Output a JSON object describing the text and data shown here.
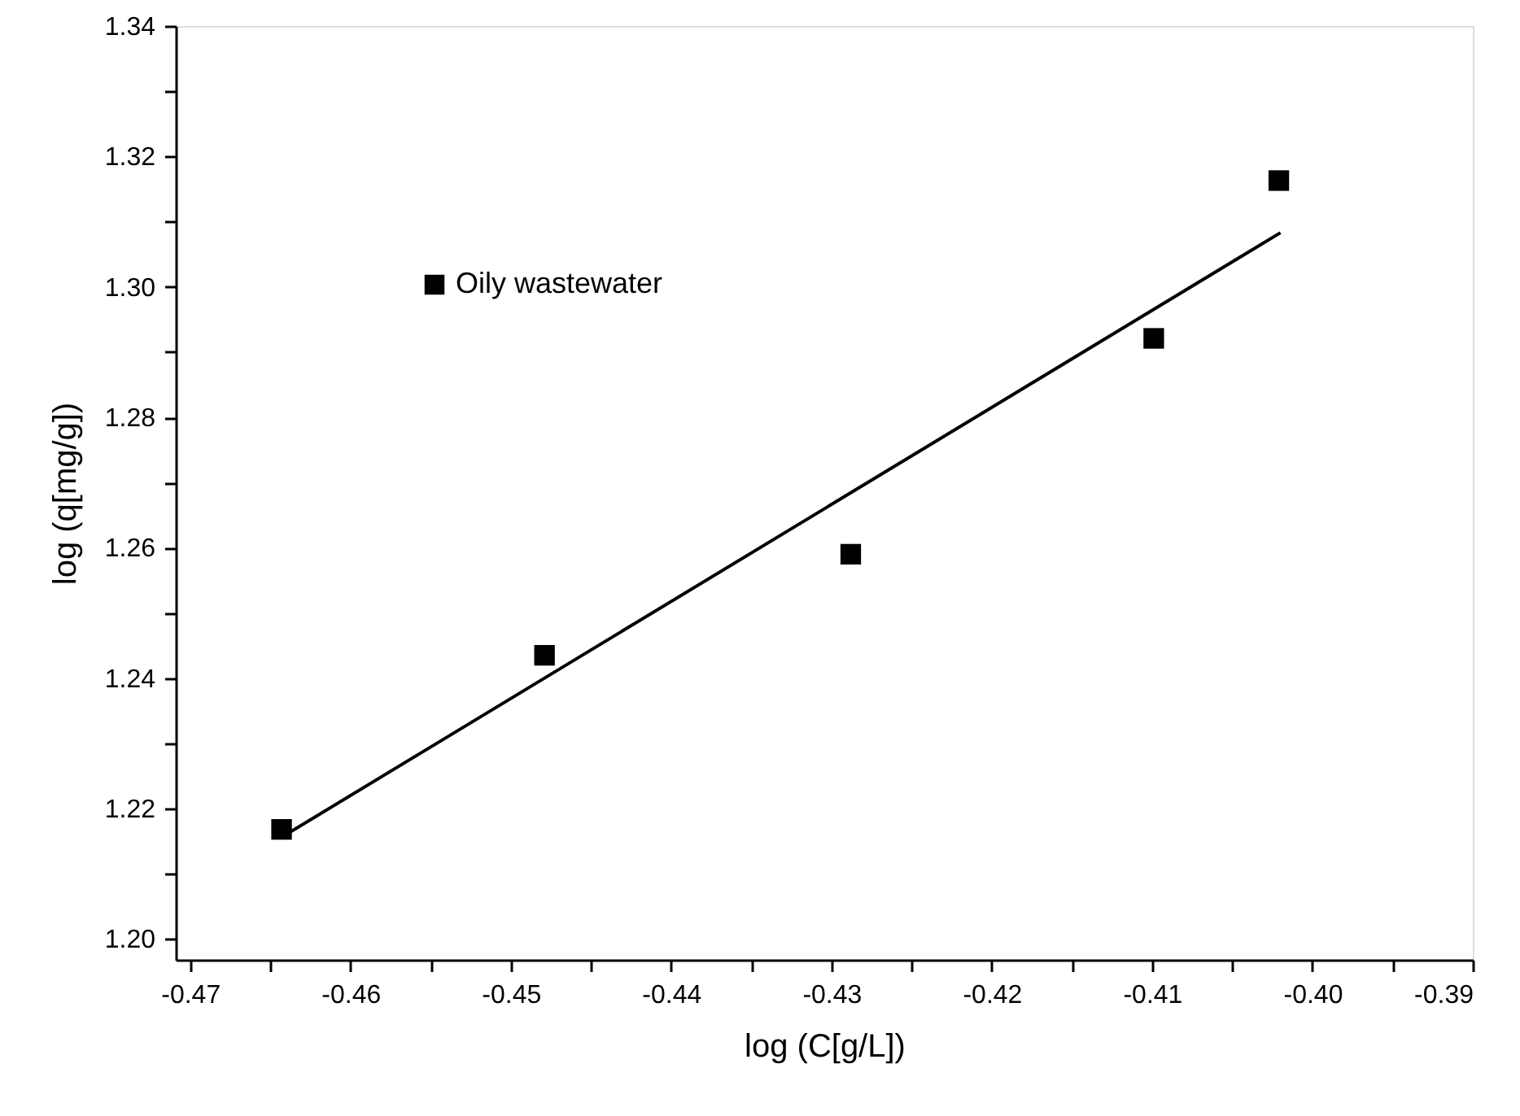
{
  "chart_data": {
    "type": "scatter",
    "xlabel": "log (C[g/L])",
    "ylabel": "log (q[mg/g])",
    "xlim": [
      -0.4709,
      -0.39
    ],
    "ylim": [
      1.1968,
      1.34
    ],
    "xticks": [
      {
        "value": -0.47,
        "label": "-0.47"
      },
      {
        "value": -0.465,
        "label": null
      },
      {
        "value": -0.46,
        "label": "-0.46"
      },
      {
        "value": -0.455,
        "label": null
      },
      {
        "value": -0.45,
        "label": "-0.45"
      },
      {
        "value": -0.445,
        "label": null
      },
      {
        "value": -0.44,
        "label": "-0.44"
      },
      {
        "value": -0.435,
        "label": null
      },
      {
        "value": -0.43,
        "label": "-0.43"
      },
      {
        "value": -0.425,
        "label": null
      },
      {
        "value": -0.42,
        "label": "-0.42"
      },
      {
        "value": -0.415,
        "label": null
      },
      {
        "value": -0.41,
        "label": "-0.41"
      },
      {
        "value": -0.405,
        "label": null
      },
      {
        "value": -0.4,
        "label": "-0.40"
      },
      {
        "value": -0.395,
        "label": null
      },
      {
        "value": -0.39,
        "label": "-0.39"
      }
    ],
    "yticks": [
      {
        "value": 1.2,
        "label": "1.20"
      },
      {
        "value": 1.21,
        "label": null
      },
      {
        "value": 1.22,
        "label": "1.22"
      },
      {
        "value": 1.23,
        "label": null
      },
      {
        "value": 1.24,
        "label": "1.24"
      },
      {
        "value": 1.25,
        "label": null
      },
      {
        "value": 1.26,
        "label": "1.26"
      },
      {
        "value": 1.27,
        "label": null
      },
      {
        "value": 1.28,
        "label": "1.28"
      },
      {
        "value": 1.29,
        "label": null
      },
      {
        "value": 1.3,
        "label": "1.30"
      },
      {
        "value": 1.31,
        "label": null
      },
      {
        "value": 1.32,
        "label": "1.32"
      },
      {
        "value": 1.33,
        "label": null
      },
      {
        "value": 1.34,
        "label": "1.34"
      }
    ],
    "grid": false,
    "legend": "top left",
    "series": [
      {
        "name": "Oily wastewater",
        "marker": "square",
        "color": "#000000",
        "x": [
          -0.4643,
          -0.4479,
          -0.4288,
          -0.4099,
          -0.4021
        ],
        "values": [
          1.2168,
          1.2435,
          1.259,
          1.2921,
          1.3163
        ]
      },
      {
        "type": "line",
        "line_style": "solid",
        "color": "#000000",
        "x": [
          -0.4643,
          -0.402
        ],
        "values": [
          1.2156,
          1.3083
        ]
      }
    ]
  }
}
